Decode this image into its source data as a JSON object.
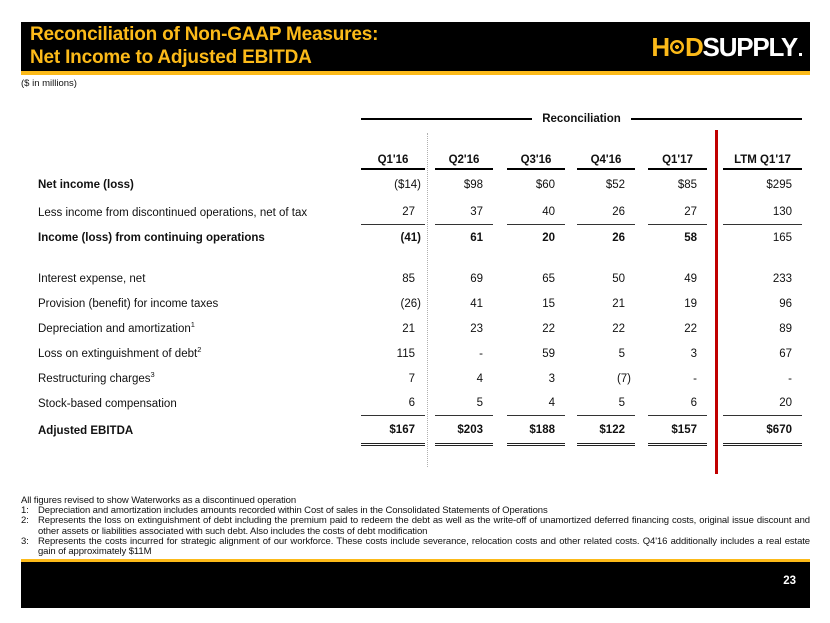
{
  "slide": {
    "title_line1": "Reconciliation of Non-GAAP Measures:",
    "title_line2": "Net Income to Adjusted EBITDA",
    "units_note": "($ in millions)",
    "page_number": "23",
    "colors": {
      "brand_gold": "#FCBA19",
      "divider_red": "#C00000",
      "bar_black": "#000000"
    }
  },
  "logo": {
    "h": "H",
    "d": "D",
    "rest": "SUPPLY"
  },
  "table": {
    "group_header": "Reconciliation",
    "columns": [
      "Q1'16",
      "Q2'16",
      "Q3'16",
      "Q4'16",
      "Q1'17",
      "LTM Q1'17"
    ],
    "rows": [
      {
        "label": "Net income (loss)",
        "label_bold": true,
        "values": [
          "($14)",
          "$98",
          "$60",
          "$52",
          "$85",
          "$295"
        ],
        "rule": "none"
      },
      {
        "label": "Less income from discontinued operations, net of tax",
        "values": [
          "27",
          "37",
          "40",
          "26",
          "27",
          "130"
        ],
        "rule": "single"
      },
      {
        "label": "Income (loss)  from continuing operations",
        "label_bold": true,
        "values": [
          "(41)",
          "61",
          "20",
          "26",
          "58",
          "165"
        ],
        "values_bold": [
          true,
          true,
          true,
          true,
          true,
          false
        ],
        "rule": "none"
      },
      {
        "spacer": true
      },
      {
        "label": "Interest expense, net",
        "values": [
          "85",
          "69",
          "65",
          "50",
          "49",
          "233"
        ],
        "rule": "none"
      },
      {
        "label": "Provision (benefit) for income taxes",
        "values": [
          "(26)",
          "41",
          "15",
          "21",
          "19",
          "96"
        ],
        "rule": "none"
      },
      {
        "label": "Depreciation and amortization",
        "sup": "1",
        "values": [
          "21",
          "23",
          "22",
          "22",
          "22",
          "89"
        ],
        "rule": "none"
      },
      {
        "label": "Loss on extinguishment of debt",
        "sup": "2",
        "values": [
          "115",
          "-",
          "59",
          "5",
          "3",
          "67"
        ],
        "rule": "none"
      },
      {
        "label": "Restructuring charges",
        "sup": "3",
        "values": [
          "7",
          "4",
          "3",
          "(7)",
          "-",
          "-"
        ],
        "rule": "none"
      },
      {
        "label": "Stock-based compensation",
        "values": [
          "6",
          "5",
          "4",
          "5",
          "6",
          "20"
        ],
        "rule": "single"
      },
      {
        "label": "Adjusted EBITDA",
        "label_bold": true,
        "values": [
          "$167",
          "$203",
          "$188",
          "$122",
          "$157",
          "$670"
        ],
        "values_bold": true,
        "rule": "double"
      }
    ]
  },
  "footnotes": {
    "preamble": "All figures revised to show Waterworks as a discontinued operation",
    "items": [
      {
        "marker": "1:",
        "text": "Depreciation and amortization includes amounts recorded within Cost of sales in the Consolidated Statements of Operations"
      },
      {
        "marker": "2:",
        "text": "Represents the loss on extinguishment of debt including the premium paid to redeem the debt as well as the write-off of unamortized deferred financing costs, original issue discount and other assets or liabilities associated with such debt. Also includes the costs of debt modification"
      },
      {
        "marker": "3:",
        "text": "Represents the costs incurred for strategic alignment of our workforce. These costs include severance, relocation costs and other related costs. Q4'16 additionally includes a real estate gain of approximately $11M"
      }
    ]
  }
}
